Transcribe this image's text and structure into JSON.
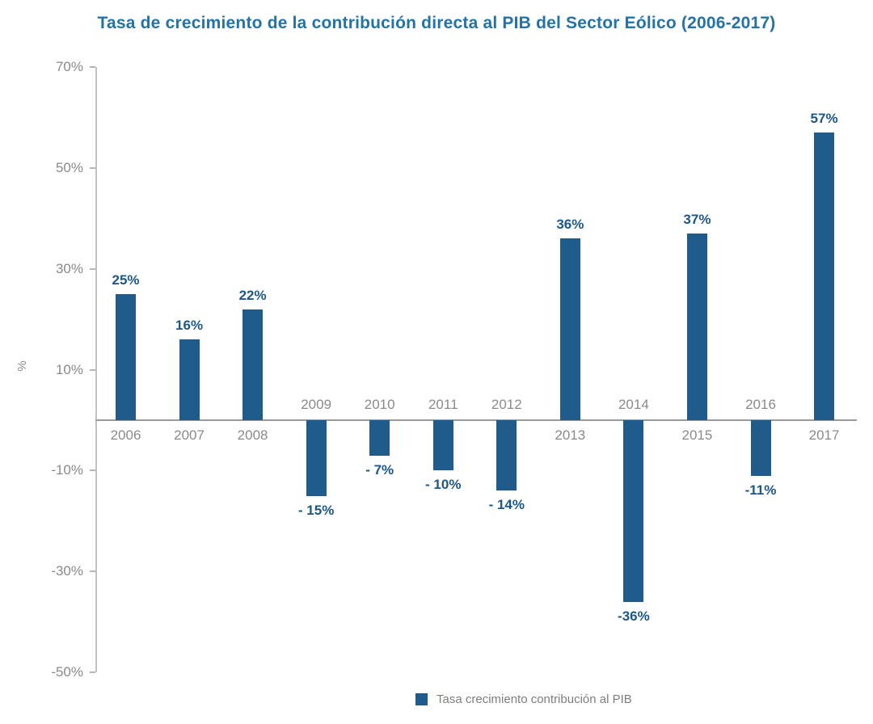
{
  "colors": {
    "background": "#FFFFFF",
    "bar": "#1F5C8C",
    "title": "#2472A6",
    "value_label": "#1C578A",
    "axis_text": "#8A8A8A",
    "axis_line": "#C2C2C2",
    "tick": "#B5B5B5",
    "baseline": "#9B9B9B",
    "legend_text": "#7E7E7E"
  },
  "chart_data": {
    "type": "bar",
    "title": "Tasa de crecimiento de la contribución directa al PIB del Sector Eólico (2006-2017)",
    "categories": [
      "2006",
      "2007",
      "2008",
      "2009",
      "2010",
      "2011",
      "2012",
      "2013",
      "2014",
      "2015",
      "2016",
      "2017"
    ],
    "values": [
      25,
      16,
      22,
      -15,
      -7,
      -10,
      -14,
      36,
      -36,
      37,
      -11,
      57
    ],
    "value_labels": [
      "25%",
      "16%",
      "22%",
      "- 15%",
      "- 7%",
      "- 10%",
      "- 14%",
      "36%",
      "-36%",
      "37%",
      "-11%",
      "57%"
    ],
    "xlabel": "",
    "ylabel": "%",
    "ylim": [
      -50,
      70
    ],
    "yticks": [
      70,
      50,
      30,
      10,
      -10,
      -30,
      -50
    ],
    "ytick_labels": [
      "70%",
      "50%",
      "30%",
      "10%",
      "-10%",
      "-30%",
      "-50%"
    ],
    "grid": false,
    "legend": {
      "position": "bottom",
      "entries": [
        "Tasa crecimiento contribución al PIB"
      ]
    }
  }
}
